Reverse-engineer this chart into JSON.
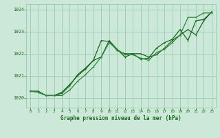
{
  "title": "Graphe pression niveau de la mer (hPa)",
  "bg_color": "#cce8d8",
  "grid_color": "#99ccb0",
  "line_color_dark": "#1a6620",
  "line_color_med": "#2d8a3a",
  "xlim": [
    -0.5,
    23.5
  ],
  "ylim": [
    1019.55,
    1024.25
  ],
  "xticks": [
    0,
    1,
    2,
    3,
    4,
    5,
    6,
    7,
    8,
    9,
    10,
    11,
    12,
    13,
    14,
    15,
    16,
    17,
    18,
    19,
    20,
    21,
    22,
    23
  ],
  "yticks": [
    1020,
    1021,
    1022,
    1023,
    1024
  ],
  "series1_x": [
    0,
    1,
    2,
    3,
    4,
    5,
    6,
    7,
    8,
    9,
    10,
    11,
    12,
    13,
    14,
    15,
    16,
    17,
    18,
    19,
    20,
    21,
    22,
    23
  ],
  "series1_y": [
    1020.3,
    1020.25,
    1020.1,
    1020.1,
    1020.2,
    1020.55,
    1021.05,
    1021.35,
    1021.7,
    1022.6,
    1022.55,
    1022.15,
    1022.0,
    1022.0,
    1021.75,
    1021.8,
    1022.25,
    1022.5,
    1022.65,
    1023.1,
    1022.6,
    1023.5,
    1023.55,
    1023.9
  ],
  "series2_x": [
    0,
    1,
    2,
    3,
    4,
    5,
    6,
    7,
    8,
    9,
    10,
    11,
    12,
    13,
    14,
    15,
    16,
    17,
    18,
    19,
    20,
    21,
    22,
    23
  ],
  "series2_y": [
    1020.3,
    1020.3,
    1020.1,
    1020.1,
    1020.25,
    1020.6,
    1021.0,
    1021.3,
    1021.7,
    1021.85,
    1022.6,
    1022.2,
    1021.85,
    1022.0,
    1022.0,
    1021.85,
    1021.95,
    1022.25,
    1022.6,
    1022.85,
    1023.1,
    1022.85,
    1023.5,
    1023.9
  ],
  "series3_x": [
    0,
    1,
    2,
    3,
    4,
    5,
    6,
    7,
    8,
    9,
    10,
    11,
    12,
    13,
    14,
    15,
    16,
    17,
    18,
    19,
    20,
    21,
    22,
    23
  ],
  "series3_y": [
    1020.3,
    1020.25,
    1020.1,
    1020.1,
    1020.1,
    1020.35,
    1020.75,
    1021.05,
    1021.4,
    1021.85,
    1022.5,
    1022.2,
    1021.95,
    1021.95,
    1021.8,
    1021.7,
    1022.05,
    1022.2,
    1022.5,
    1022.85,
    1023.65,
    1023.65,
    1023.85,
    1023.85
  ]
}
